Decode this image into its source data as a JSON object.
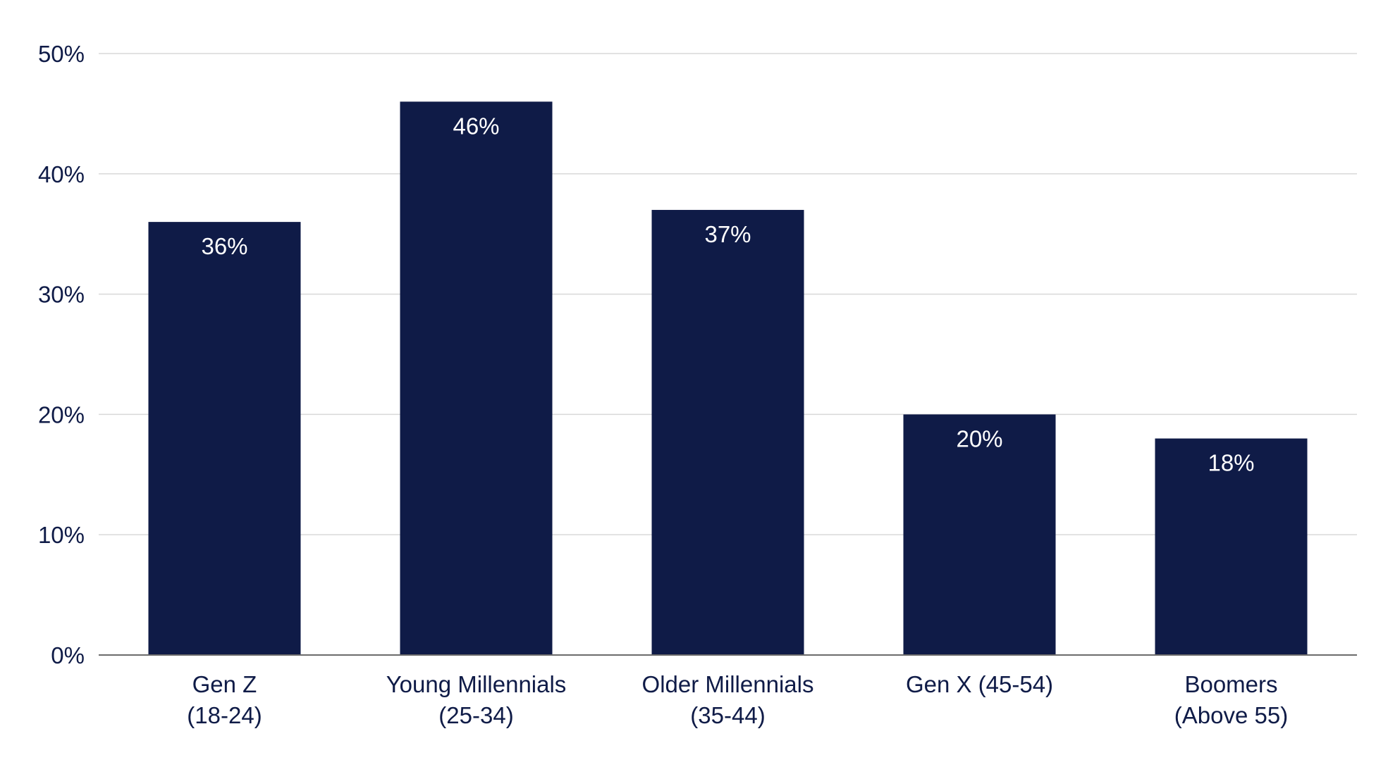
{
  "colors": {
    "bar": "#0f1b47",
    "data_label": "#ffffff",
    "tick_text": "#0f1b47",
    "gridline": "#d9d9d9",
    "axis": "#6b6b6b",
    "background": "#ffffff"
  },
  "chart_data": {
    "type": "bar",
    "title": "",
    "xlabel": "",
    "ylabel": "",
    "categories": [
      [
        "Gen Z",
        "(18-24)"
      ],
      [
        "Young Millennials",
        "(25-34)"
      ],
      [
        "Older Millennials",
        "(35-44)"
      ],
      [
        "Gen X (45-54)"
      ],
      [
        "Boomers",
        "(Above 55)"
      ]
    ],
    "values": [
      36,
      46,
      37,
      20,
      18
    ],
    "data_labels": [
      "36%",
      "46%",
      "37%",
      "20%",
      "18%"
    ],
    "ylim": [
      0,
      50
    ],
    "yticks": [
      0,
      10,
      20,
      30,
      40,
      50
    ],
    "ytick_labels": [
      "0%",
      "10%",
      "20%",
      "30%",
      "40%",
      "50%"
    ],
    "grid": true,
    "legend": "none"
  }
}
